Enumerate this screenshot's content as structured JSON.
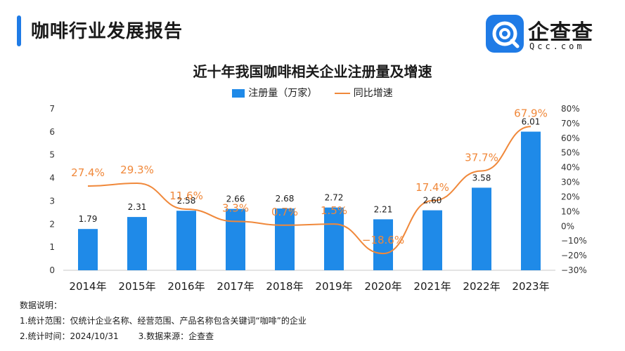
{
  "header": {
    "title": "咖啡行业发展报告"
  },
  "logo": {
    "name": "企查查",
    "sub": "Qcc.com"
  },
  "colors": {
    "accent": "#1f7be6",
    "bar": "#1f8ae8",
    "line": "#f0883a"
  },
  "chart_data": {
    "type": "bar",
    "title": "近十年我国咖啡相关企业注册量及增速",
    "legend": [
      "注册量（万家）",
      "同比增速"
    ],
    "legend_position": "top-center",
    "categories": [
      "2014年",
      "2015年",
      "2016年",
      "2017年",
      "2018年",
      "2019年",
      "2020年",
      "2021年",
      "2022年",
      "2023年"
    ],
    "series": [
      {
        "name": "注册量（万家）",
        "type": "bar",
        "axis": "left",
        "values": [
          1.79,
          2.31,
          2.58,
          2.66,
          2.68,
          2.72,
          2.21,
          2.6,
          3.58,
          6.01
        ],
        "labels": [
          "1.79",
          "2.31",
          "2.58",
          "2.66",
          "2.68",
          "2.72",
          "2.21",
          "2.60",
          "3.58",
          "6.01"
        ]
      },
      {
        "name": "同比增速",
        "type": "line",
        "axis": "right",
        "values": [
          27.4,
          29.3,
          11.6,
          3.3,
          0.7,
          1.5,
          -18.6,
          17.4,
          37.7,
          67.9
        ],
        "labels": [
          "27.4%",
          "29.3%",
          "11.6%",
          "3.3%",
          "0.7%",
          "1.5%",
          "−18.6%",
          "17.4%",
          "37.7%",
          "67.9%"
        ]
      }
    ],
    "y_left": {
      "min": 0,
      "max": 7,
      "ticks": [
        "0",
        "1",
        "2",
        "3",
        "4",
        "5",
        "6",
        "7"
      ]
    },
    "y_right": {
      "min": -30,
      "max": 80,
      "ticks": [
        "−30%",
        "−20%",
        "−10%",
        "0%",
        "10%",
        "20%",
        "30%",
        "40%",
        "50%",
        "60%",
        "70%",
        "80%"
      ]
    },
    "grid": false
  },
  "notes": {
    "heading": "数据说明：",
    "line1": "1.统计范围：仅统计企业名称、经营范围、产品名称包含关键词“咖啡”的企业",
    "line2a": "2.统计时间：2024/10/31",
    "line2b": "3.数据来源：企查查"
  }
}
